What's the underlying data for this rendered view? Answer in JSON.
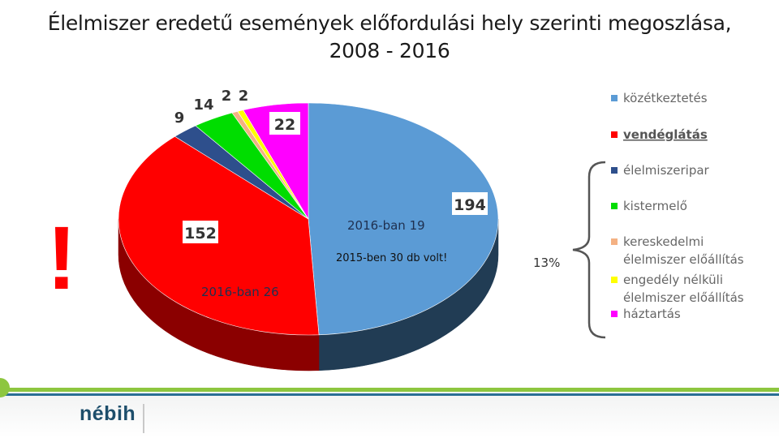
{
  "title_line1": "Élelmiszer eredetű események előfordulási hely szerinti megoszlása,",
  "title_line2": "2008 - 2016",
  "chart_data": {
    "type": "pie",
    "title": "Élelmiszer eredetű események előfordulási hely szerinti megoszlása, 2008 - 2016",
    "slices": [
      {
        "label": "közétkeztetés",
        "value": 194,
        "color": "#5b9bd5",
        "side": "#213c54"
      },
      {
        "label": "vendéglátás",
        "value": 152,
        "color": "#ff0000",
        "side": "#8b0000"
      },
      {
        "label": "élelmiszeripar",
        "value": 9,
        "color": "#2e4f8c",
        "side": "#17284a"
      },
      {
        "label": "kistermelő",
        "value": 14,
        "color": "#00dd00",
        "side": "#007000"
      },
      {
        "label": "kereskedelmi élelmiszer előállítás",
        "value": 2,
        "color": "#f4b183",
        "side": "#9a6a49"
      },
      {
        "label": "engedély nélküli élelmiszer előállítás",
        "value": 2,
        "color": "#ffff00",
        "side": "#8a8a00"
      },
      {
        "label": "háztartás",
        "value": 22,
        "color": "#ff00ff",
        "side": "#8a008a"
      }
    ],
    "legend_placement": "right"
  },
  "labels": {
    "v194": "194",
    "v152": "152",
    "v22": "22",
    "v9": "9",
    "v14": "14",
    "v2a": "2",
    "v2b": "2",
    "kozet_2016": "2016-ban 19",
    "kozet_2015": "2015-ben 30 db volt!",
    "vend_2016": "2016-ban 26",
    "group_pct": "13%",
    "exclamation": "!"
  },
  "legend": [
    {
      "line1": "közétkeztetés",
      "line2": "",
      "color": "#5b9bd5"
    },
    {
      "line1": "vendéglátás",
      "line2": "",
      "color": "#ff0000"
    },
    {
      "line1": "élelmiszeripar",
      "line2": "",
      "color": "#2e4f8c"
    },
    {
      "line1": "kistermelő",
      "line2": "",
      "color": "#00dd00"
    },
    {
      "line1": "kereskedelmi",
      "line2": "élelmiszer előállítás",
      "color": "#f4b183"
    },
    {
      "line1": "engedély nélküli",
      "line2": "élelmiszer előállítás",
      "color": "#ffff00"
    },
    {
      "line1": "háztartás",
      "line2": "",
      "color": "#ff00ff"
    }
  ],
  "logo_text": "nébih"
}
